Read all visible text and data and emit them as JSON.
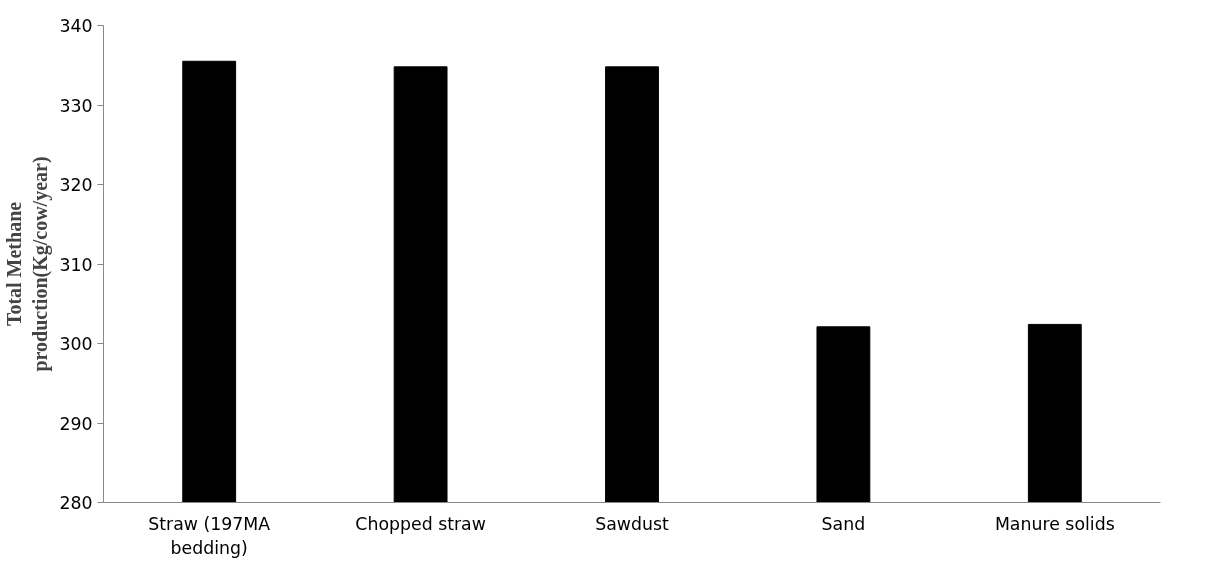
{
  "chart_data": {
    "type": "bar",
    "ylabel": "Total Methane production(Kg/cow/year)",
    "categories": [
      "Straw (197MA bedding)",
      "Chopped straw",
      "Sawdust",
      "Sand",
      "Manure solids"
    ],
    "values": [
      335.5,
      334.8,
      334.8,
      302.1,
      302.4
    ],
    "color": "#000000",
    "ylim": [
      280,
      340
    ],
    "yticks": [
      280,
      290,
      300,
      310,
      320,
      330,
      340
    ],
    "grid": false
  }
}
